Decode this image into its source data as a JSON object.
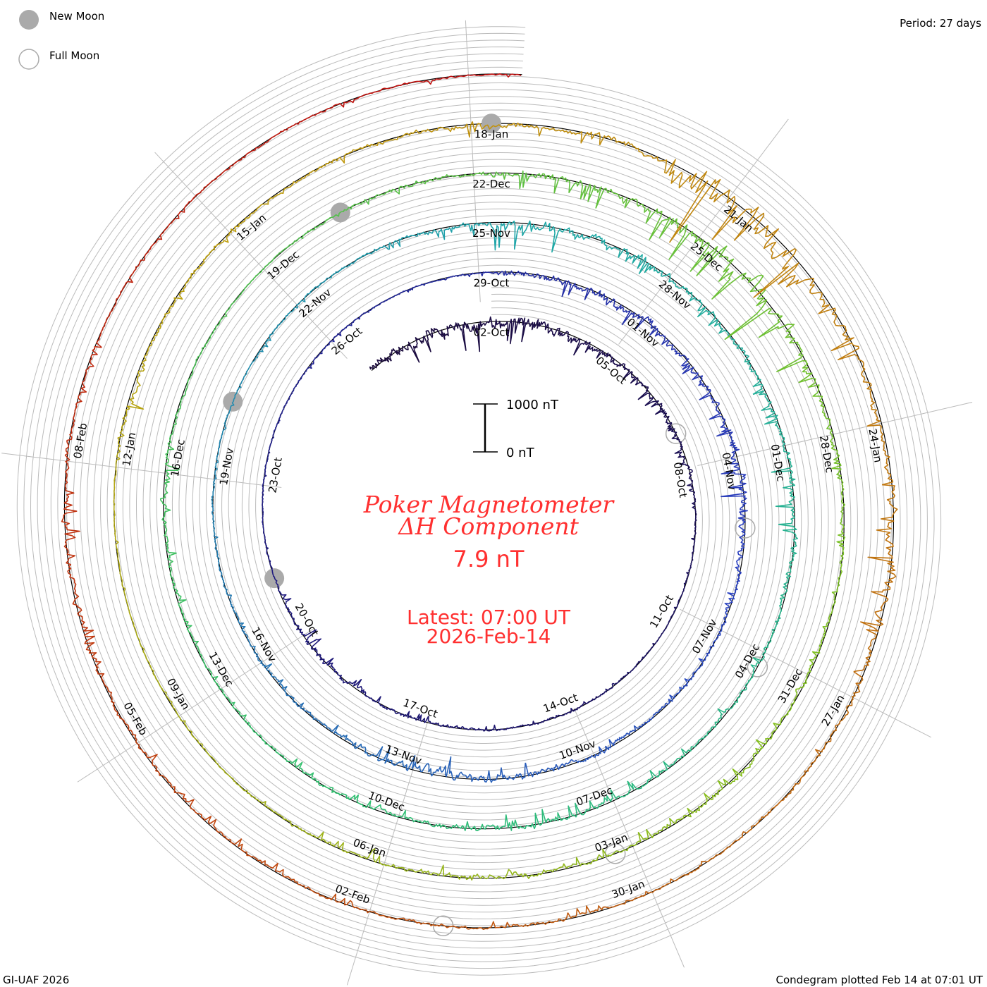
{
  "legend": {
    "new_moon": "New Moon",
    "full_moon": "Full Moon"
  },
  "period": "Period: 27 days",
  "footer": {
    "left": "GI-UAF 2026",
    "right": "Condegram plotted Feb 14 at 07:01 UT"
  },
  "colors": {
    "text": "#ff3030",
    "moon": "#aaaaaa",
    "grid": "#bbbbbb"
  },
  "chart_data": {
    "type": "condegram",
    "title": "Poker Magnetometer",
    "subtitle": "ΔH Component",
    "current_value": "7.9 nT",
    "latest_line1": "Latest: 07:00 UT",
    "latest_line2": "2026-Feb-14",
    "period_days": 27,
    "start_offset_days": -3,
    "end_offset_days": 135.3,
    "scale": {
      "top_label": "1000 nT",
      "bottom_label": "0 nT",
      "nT": 1000
    },
    "daily_activity_nT": [
      500,
      600,
      500,
      600,
      500,
      300,
      250,
      300,
      200,
      100,
      60,
      50,
      40,
      60,
      80,
      80,
      100,
      200,
      150,
      250,
      300,
      150,
      60,
      50,
      50,
      60,
      80,
      60,
      60,
      80,
      300,
      300,
      400,
      300,
      250,
      400,
      500,
      300,
      200,
      150,
      100,
      200,
      300,
      400,
      500,
      300,
      200,
      150,
      100,
      100,
      100,
      60,
      60,
      80,
      100,
      150,
      200,
      500,
      400,
      300,
      250,
      300,
      300,
      400,
      300,
      200,
      200,
      150,
      200,
      300,
      300,
      200,
      200,
      150,
      100,
      100,
      200,
      250,
      150,
      100,
      60,
      80,
      150,
      200,
      300,
      400,
      700,
      900,
      600,
      300,
      200,
      150,
      150,
      200,
      250,
      200,
      200,
      300,
      250,
      150,
      100,
      60,
      50,
      50,
      60,
      300,
      200,
      150,
      150,
      200,
      250,
      200,
      300,
      1600,
      1400,
      500,
      300,
      400,
      500,
      300,
      200,
      100,
      100,
      150,
      150,
      150,
      150,
      150,
      200,
      200,
      300,
      300,
      150,
      100,
      80,
      100,
      100,
      100,
      60
    ],
    "date_labels": [
      "02-Oct",
      "05-Oct",
      "08-Oct",
      "11-Oct",
      "14-Oct",
      "17-Oct",
      "20-Oct",
      "23-Oct",
      "26-Oct",
      "29-Oct",
      "01-Nov",
      "04-Nov",
      "07-Nov",
      "10-Nov",
      "13-Nov",
      "16-Nov",
      "19-Nov",
      "22-Nov",
      "25-Nov",
      "28-Nov",
      "01-Dec",
      "04-Dec",
      "07-Dec",
      "10-Dec",
      "13-Dec",
      "16-Dec",
      "19-Dec",
      "22-Dec",
      "25-Dec",
      "28-Dec",
      "31-Dec",
      "03-Jan",
      "06-Jan",
      "09-Jan",
      "12-Jan",
      "15-Jan",
      "18-Jan",
      "21-Jan",
      "24-Jan",
      "27-Jan",
      "30-Jan",
      "02-Feb",
      "05-Feb",
      "08-Feb"
    ],
    "new_moon_offsets_days": [
      19,
      49,
      79,
      108
    ],
    "full_moon_offsets_days": [
      5,
      34,
      63,
      93,
      122
    ],
    "color_stops": [
      [
        -3,
        "#1a0a3a"
      ],
      [
        20,
        "#1e1a80"
      ],
      [
        35,
        "#2a40c0"
      ],
      [
        55,
        "#20a8a8"
      ],
      [
        70,
        "#30c070"
      ],
      [
        90,
        "#80c020"
      ],
      [
        105,
        "#c0a010"
      ],
      [
        120,
        "#c06010"
      ],
      [
        135,
        "#c01010"
      ]
    ]
  }
}
